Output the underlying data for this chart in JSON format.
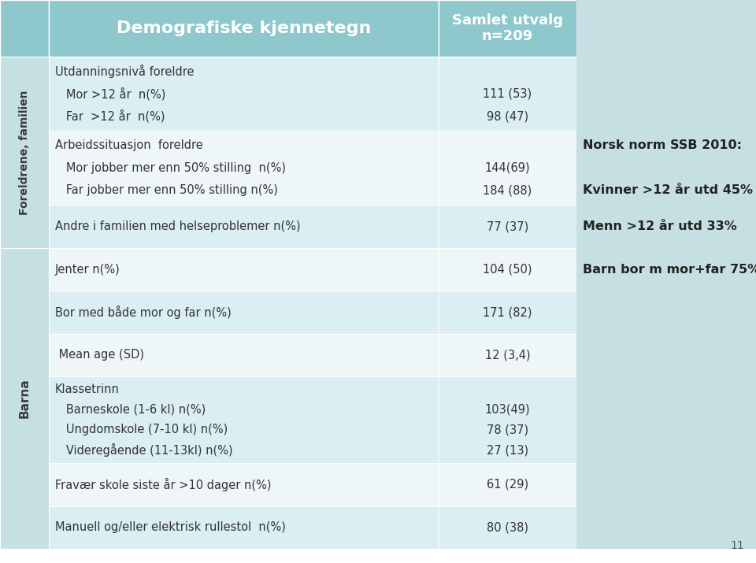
{
  "header_col1": "Demografiske kjennetegn",
  "header_col2": "Samlet utvalg\nn=209",
  "header_bg": "#8ec8cc",
  "header_text_color": "#ffffff",
  "sidebar_bg": "#c5dfe3",
  "sidebar_text_color": "#3a3a3a",
  "body_text_color": "#333333",
  "note_text_color": "#222222",
  "bg_light": "#daeef3",
  "bg_white": "#eef6f8",
  "rows": [
    {
      "section": "Foreldrene, familien",
      "label_lines": [
        "Utdanningsnivå foreldre",
        "   Mor >12 år  n(%)",
        "   Far  >12 år  n(%)"
      ],
      "label_bold": [
        false,
        false,
        false
      ],
      "value_lines": [
        "",
        "111 (53)",
        "98 (47)"
      ],
      "note_lines": [],
      "bg": "light"
    },
    {
      "section": "Foreldrene, familien",
      "label_lines": [
        "Arbeidssituasjon  foreldre",
        "   Mor jobber mer enn 50% stilling  n(%)",
        "   Far jobber mer enn 50% stilling n(%)"
      ],
      "label_bold": [
        false,
        false,
        false
      ],
      "value_lines": [
        "",
        "144(69)",
        "184 (88)"
      ],
      "note_lines": [
        "Norsk norm SSB 2010:",
        "",
        "Kvinner >12 år utd 45%"
      ],
      "bg": "white"
    },
    {
      "section": "Foreldrene, familien",
      "label_lines": [
        "Andre i familien med helseproblemer n(%)"
      ],
      "label_bold": [
        false
      ],
      "value_lines": [
        "77 (37)"
      ],
      "note_lines": [
        "Menn >12 år utd 33%"
      ],
      "bg": "light"
    },
    {
      "section": "Barna",
      "label_lines": [
        "Jenter n(%)"
      ],
      "label_bold": [
        false
      ],
      "value_lines": [
        "104 (50)"
      ],
      "note_lines": [
        "Barn bor m mor+far 75%"
      ],
      "bg": "white"
    },
    {
      "section": "Barna",
      "label_lines": [
        "Bor med både mor og far n(%)"
      ],
      "label_bold": [
        false
      ],
      "value_lines": [
        "171 (82)"
      ],
      "note_lines": [],
      "bg": "light"
    },
    {
      "section": "Barna",
      "label_lines": [
        " Mean age (SD)"
      ],
      "label_bold": [
        false
      ],
      "value_lines": [
        "12 (3,4)"
      ],
      "note_lines": [],
      "bg": "white"
    },
    {
      "section": "Barna",
      "label_lines": [
        "Klassetrinn",
        "   Barneskole (1-6 kl) n(%)",
        "   Ungdomskole (7-10 kl) n(%)",
        "   Videregående (11-13kl) n(%)"
      ],
      "label_bold": [
        false,
        false,
        false,
        false
      ],
      "value_lines": [
        "",
        "103(49)",
        "78 (37)",
        "27 (13)"
      ],
      "note_lines": [],
      "bg": "light"
    },
    {
      "section": "Barna",
      "label_lines": [
        "Fravær skole siste år >10 dager n(%)"
      ],
      "label_bold": [
        false
      ],
      "value_lines": [
        "61 (29)"
      ],
      "note_lines": [],
      "bg": "white"
    },
    {
      "section": "Barna",
      "label_lines": [
        "Manuell og/eller elektrisk rullestol  n(%)"
      ],
      "label_bold": [
        false
      ],
      "value_lines": [
        "80 (38)"
      ],
      "note_lines": [],
      "bg": "light"
    }
  ],
  "page_number": "11"
}
